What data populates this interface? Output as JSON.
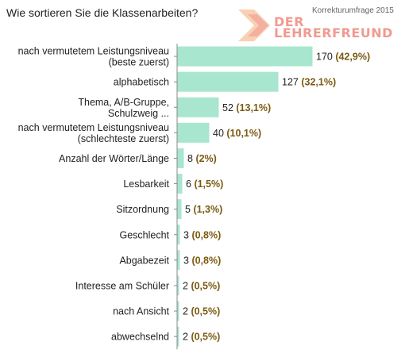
{
  "title": "Wie sortieren Sie die Klassenarbeiten?",
  "logo": {
    "tagline": "Korrekturumfrage 2015",
    "line1": "DER",
    "line2": "LEHRERFREUND",
    "color": "#f29a90"
  },
  "colors": {
    "bar": "#a8e6cf",
    "axis": "#888888",
    "percent_text": "#7a5a10"
  },
  "chart_data": {
    "type": "bar",
    "orientation": "horizontal",
    "title": "Wie sortieren Sie die Klassenarbeiten?",
    "categories": [
      [
        "nach vermutetem Leistungsniveau",
        "(beste zuerst)"
      ],
      [
        "alphabetisch"
      ],
      [
        "Thema, A/B-Gruppe,",
        "Schulzweig ..."
      ],
      [
        "nach vermutetem Leistungsniveau",
        "(schlechteste zuerst)"
      ],
      [
        "Anzahl der Wörter/Länge"
      ],
      [
        "Lesbarkeit"
      ],
      [
        "Sitzordnung"
      ],
      [
        "Geschlecht"
      ],
      [
        "Abgabezeit"
      ],
      [
        "Interesse am Schüler"
      ],
      [
        "nach Ansicht"
      ],
      [
        "abwechselnd"
      ]
    ],
    "values": [
      170,
      127,
      52,
      40,
      8,
      6,
      5,
      3,
      3,
      2,
      2,
      2
    ],
    "percent_labels": [
      "(42,9%)",
      "(32,1%)",
      "(13,1%)",
      "(10,1%)",
      "(2%)",
      "(1,5%)",
      "(1,3%)",
      "(0,8%)",
      "(0,8%)",
      "(0,5%)",
      "(0,5%)",
      "(0,5%)"
    ],
    "xlim": [
      0,
      180
    ],
    "grid": false,
    "legend": "none"
  }
}
